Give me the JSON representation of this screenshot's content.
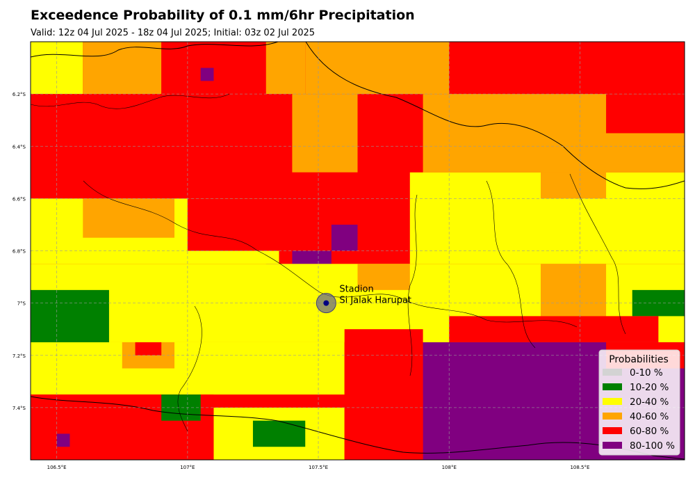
{
  "chart_data": {
    "type": "heatmap",
    "title": "Exceedence Probability of 0.1 mm/6hr Precipitation",
    "subtitle": "Valid: 12z 04 Jul 2025 - 18z 04 Jul 2025; Initial: 03z 02 Jul 2025",
    "x_range": [
      106.4,
      108.9
    ],
    "y_range": [
      -7.6,
      -6.0
    ],
    "x_ticks": [
      106.5,
      107.0,
      107.5,
      108.0,
      108.5
    ],
    "x_tick_labels": [
      "106.5°E",
      "107°E",
      "107.5°E",
      "108°E",
      "108.5°E"
    ],
    "y_ticks": [
      -6.2,
      -6.4,
      -6.6,
      -6.8,
      -7.0,
      -7.2,
      -7.4
    ],
    "y_tick_labels": [
      "6.2°S",
      "6.4°S",
      "6.6°S",
      "6.8°S",
      "7°S",
      "7.2°S",
      "7.4°S"
    ],
    "grid": true,
    "legend_position": "bottom-right",
    "legend": {
      "title": "Probabilities",
      "items": [
        {
          "label": "0-10 %",
          "color": "#d3d3d3"
        },
        {
          "label": "10-20 %",
          "color": "#008000"
        },
        {
          "label": "20-40 %",
          "color": "#ffff00"
        },
        {
          "label": "40-60 %",
          "color": "#ffa500"
        },
        {
          "label": "60-80 %",
          "color": "#ff0000"
        },
        {
          "label": "80-100 %",
          "color": "#800080"
        }
      ]
    },
    "annotation": {
      "label_line1": "Stadion",
      "label_line2": "Si Jalak Harupat",
      "lon": 107.53,
      "lat": -7.0
    },
    "grid_resolution_deg": 0.05,
    "cells": [
      {
        "lon": [
          106.4,
          106.6
        ],
        "lat": [
          -6.2,
          -6.0
        ],
        "cat": 2
      },
      {
        "lon": [
          106.6,
          106.9
        ],
        "lat": [
          -6.2,
          -6.0
        ],
        "cat": 3
      },
      {
        "lon": [
          106.9,
          107.3
        ],
        "lat": [
          -6.3,
          -6.0
        ],
        "cat": 4
      },
      {
        "lon": [
          107.3,
          107.45
        ],
        "lat": [
          -6.2,
          -6.0
        ],
        "cat": 3
      },
      {
        "lon": [
          107.45,
          108.0
        ],
        "lat": [
          -6.2,
          -6.0
        ],
        "cat": 3
      },
      {
        "lon": [
          108.0,
          108.9
        ],
        "lat": [
          -6.2,
          -6.0
        ],
        "cat": 4
      },
      {
        "lon": [
          106.4,
          107.4
        ],
        "lat": [
          -6.6,
          -6.2
        ],
        "cat": 4
      },
      {
        "lon": [
          107.4,
          107.65
        ],
        "lat": [
          -6.5,
          -6.2
        ],
        "cat": 3
      },
      {
        "lon": [
          107.65,
          107.9
        ],
        "lat": [
          -6.5,
          -6.3
        ],
        "cat": 4
      },
      {
        "lon": [
          107.9,
          108.9
        ],
        "lat": [
          -6.5,
          -6.2
        ],
        "cat": 3
      },
      {
        "lon": [
          108.6,
          108.9
        ],
        "lat": [
          -6.35,
          -6.2
        ],
        "cat": 4
      },
      {
        "lon": [
          106.4,
          107.35
        ],
        "lat": [
          -6.85,
          -6.6
        ],
        "cat": 2
      },
      {
        "lon": [
          106.6,
          106.95
        ],
        "lat": [
          -6.75,
          -6.6
        ],
        "cat": 3
      },
      {
        "lon": [
          107.0,
          107.4
        ],
        "lat": [
          -6.8,
          -6.6
        ],
        "cat": 4
      },
      {
        "lon": [
          107.35,
          107.85
        ],
        "lat": [
          -6.85,
          -6.5
        ],
        "cat": 4
      },
      {
        "lon": [
          107.85,
          108.9
        ],
        "lat": [
          -6.85,
          -6.5
        ],
        "cat": 2
      },
      {
        "lon": [
          108.35,
          108.6
        ],
        "lat": [
          -6.6,
          -6.5
        ],
        "cat": 3
      },
      {
        "lon": [
          107.4,
          107.55
        ],
        "lat": [
          -6.95,
          -6.8
        ],
        "cat": 5
      },
      {
        "lon": [
          107.55,
          107.65
        ],
        "lat": [
          -6.8,
          -6.7
        ],
        "cat": 5
      },
      {
        "lon": [
          107.3,
          107.4
        ],
        "lat": [
          -6.95,
          -6.85
        ],
        "cat": 5
      },
      {
        "lon": [
          106.4,
          108.9
        ],
        "lat": [
          -7.15,
          -6.85
        ],
        "cat": 2
      },
      {
        "lon": [
          106.4,
          106.7
        ],
        "lat": [
          -7.25,
          -6.95
        ],
        "cat": 1
      },
      {
        "lon": [
          108.7,
          108.9
        ],
        "lat": [
          -7.05,
          -6.95
        ],
        "cat": 1
      },
      {
        "lon": [
          107.65,
          107.85
        ],
        "lat": [
          -6.95,
          -6.85
        ],
        "cat": 3
      },
      {
        "lon": [
          108.35,
          108.6
        ],
        "lat": [
          -7.05,
          -6.85
        ],
        "cat": 3
      },
      {
        "lon": [
          108.0,
          108.8
        ],
        "lat": [
          -7.15,
          -7.05
        ],
        "cat": 4
      },
      {
        "lon": [
          106.4,
          107.6
        ],
        "lat": [
          -7.35,
          -7.15
        ],
        "cat": 2
      },
      {
        "lon": [
          106.75,
          106.95
        ],
        "lat": [
          -7.25,
          -7.15
        ],
        "cat": 3
      },
      {
        "lon": [
          106.8,
          106.9
        ],
        "lat": [
          -7.2,
          -7.15
        ],
        "cat": 4
      },
      {
        "lon": [
          107.6,
          107.9
        ],
        "lat": [
          -7.35,
          -7.1
        ],
        "cat": 4
      },
      {
        "lon": [
          107.9,
          108.9
        ],
        "lat": [
          -7.6,
          -7.15
        ],
        "cat": 5
      },
      {
        "lon": [
          108.6,
          108.9
        ],
        "lat": [
          -7.25,
          -7.15
        ],
        "cat": 4
      },
      {
        "lon": [
          106.4,
          107.1
        ],
        "lat": [
          -7.6,
          -7.35
        ],
        "cat": 4
      },
      {
        "lon": [
          107.1,
          107.6
        ],
        "lat": [
          -7.6,
          -7.4
        ],
        "cat": 2
      },
      {
        "lon": [
          107.25,
          107.45
        ],
        "lat": [
          -7.55,
          -7.45
        ],
        "cat": 1
      },
      {
        "lon": [
          106.9,
          107.05
        ],
        "lat": [
          -7.45,
          -7.35
        ],
        "cat": 1
      },
      {
        "lon": [
          107.6,
          107.9
        ],
        "lat": [
          -7.6,
          -7.35
        ],
        "cat": 4
      },
      {
        "lon": [
          106.5,
          106.55
        ],
        "lat": [
          -7.55,
          -7.5
        ],
        "cat": 5
      },
      {
        "lon": [
          107.05,
          107.1
        ],
        "lat": [
          -6.15,
          -6.1
        ],
        "cat": 5
      }
    ]
  }
}
